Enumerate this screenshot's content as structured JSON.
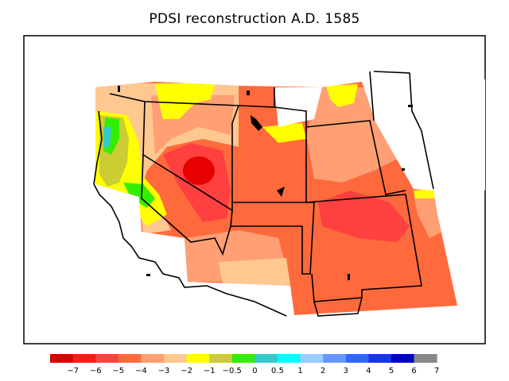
{
  "title": "PDSI reconstruction A.D. 1585",
  "legend": {
    "colors": [
      "#d90000",
      "#ff1a1a",
      "#ff4040",
      "#ff6a3d",
      "#ff9f73",
      "#ffc890",
      "#ffff00",
      "#cccc33",
      "#33ee00",
      "#33cccc",
      "#00ffff",
      "#99ccff",
      "#6699ff",
      "#3366ff",
      "#1a33ee",
      "#0000cc",
      "#888888"
    ],
    "labels": [
      "−7",
      "−6",
      "−5",
      "−4",
      "−3",
      "−2",
      "−1",
      "−0.5",
      "0",
      "0.5",
      "1",
      "2",
      "3",
      "4",
      "5",
      "6",
      "7"
    ]
  }
}
